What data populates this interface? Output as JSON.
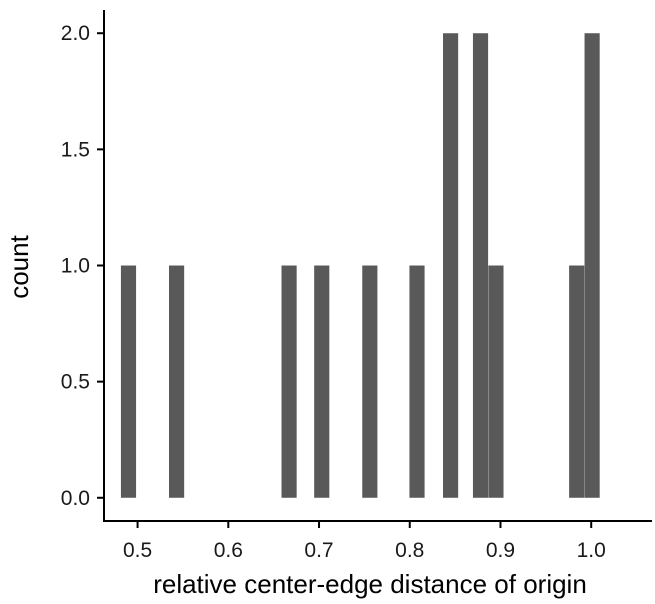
{
  "chart_data": {
    "type": "bar",
    "title": "",
    "xlabel": "relative center-edge distance of origin",
    "ylabel": "count",
    "xlim": [
      0.463,
      1.067
    ],
    "ylim": [
      -0.1,
      2.1
    ],
    "grid": false,
    "bin_width": 0.0167,
    "bar_color": "#595959",
    "x_ticks": [
      {
        "value": 0.5,
        "label": "0.5"
      },
      {
        "value": 0.6,
        "label": "0.6"
      },
      {
        "value": 0.7,
        "label": "0.7"
      },
      {
        "value": 0.8,
        "label": "0.8"
      },
      {
        "value": 0.9,
        "label": "0.9"
      },
      {
        "value": 1.0,
        "label": "1.0"
      }
    ],
    "y_ticks": [
      {
        "value": 0.0,
        "label": "0.0"
      },
      {
        "value": 0.5,
        "label": "0.5"
      },
      {
        "value": 1.0,
        "label": "1.0"
      },
      {
        "value": 1.5,
        "label": "1.5"
      },
      {
        "value": 2.0,
        "label": "2.0"
      }
    ],
    "bins": [
      {
        "x": 0.49,
        "count": 1
      },
      {
        "x": 0.543,
        "count": 1
      },
      {
        "x": 0.667,
        "count": 1
      },
      {
        "x": 0.703,
        "count": 1
      },
      {
        "x": 0.756,
        "count": 1
      },
      {
        "x": 0.808,
        "count": 1
      },
      {
        "x": 0.845,
        "count": 2
      },
      {
        "x": 0.878,
        "count": 2
      },
      {
        "x": 0.895,
        "count": 1
      },
      {
        "x": 0.984,
        "count": 1
      },
      {
        "x": 1.001,
        "count": 2
      }
    ]
  }
}
